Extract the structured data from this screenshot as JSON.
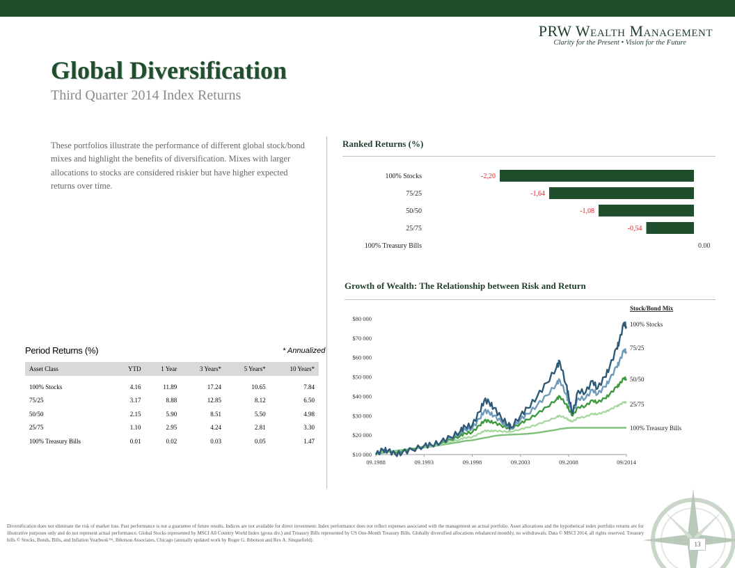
{
  "brand": {
    "name": "PRW Wealth Management",
    "tagline": "Clarity for the Present  •  Vision for the Future"
  },
  "page": {
    "title": "Global Diversification",
    "subtitle": "Third Quarter 2014 Index Returns",
    "intro": "These portfolios illustrate the performance of different global stock/bond mixes and highlight the benefits of diversification. Mixes with larger allocations to stocks are considered riskier but have higher expected returns over time.",
    "page_number": "13"
  },
  "ranked_returns": {
    "title": "Ranked Returns (%)"
  },
  "growth": {
    "title": "Growth of Wealth: The Relationship between Risk and Return"
  },
  "period_returns": {
    "title": "Period Returns (%)",
    "note": "* Annualized",
    "headers": [
      "Asset Class",
      "YTD",
      "1 Year",
      "3 Years*",
      "5 Years*",
      "10 Years*"
    ],
    "rows": [
      [
        "100% Stocks",
        "4.16",
        "11.89",
        "17.24",
        "10.65",
        "7.84"
      ],
      [
        "75/25",
        "3.17",
        "8.88",
        "12.85",
        "8.12",
        "6.50"
      ],
      [
        "50/50",
        "2.15",
        "5.90",
        "8.51",
        "5.50",
        "4.98"
      ],
      [
        "25/75",
        "1.10",
        "2.95",
        "4.24",
        "2.81",
        "3.30"
      ],
      [
        "100% Treasury Bills",
        "0.01",
        "0.02",
        "0.03",
        "0.05",
        "1.47"
      ]
    ]
  },
  "chart_data": [
    {
      "type": "bar",
      "orientation": "horizontal",
      "title": "Ranked Returns (%)",
      "categories": [
        "100% Stocks",
        "75/25",
        "50/50",
        "25/75",
        "100% Treasury Bills"
      ],
      "values": [
        -2.2,
        -1.64,
        -1.08,
        -0.54,
        0.0
      ],
      "value_labels": [
        "-2,20",
        "-1,64",
        "-1,08",
        "-0,54",
        "0.00"
      ],
      "bar_color": "#1f4e2c",
      "negative_label_color": "#e02020",
      "positive_label_color": "#333333",
      "xlim": [
        -2.2,
        0
      ]
    },
    {
      "type": "line",
      "title": "Growth of Wealth: The Relationship between Risk and Return",
      "legend_title": "Stock/Bond Mix",
      "legend_placement": "right",
      "ylim": [
        10000,
        80000
      ],
      "yticks": [
        "$10 000",
        "$20 000",
        "$30 000",
        "$40 000",
        "$50 000",
        "$60 000",
        "$70 000",
        "$80 000"
      ],
      "ytick_values": [
        10000,
        20000,
        30000,
        40000,
        50000,
        60000,
        70000,
        80000
      ],
      "xlim": [
        1988.75,
        2014.75
      ],
      "xticks": [
        "09.1988",
        "09.1993",
        "09.1998",
        "09.2003",
        "09.2008",
        "09/2014"
      ],
      "xtick_values": [
        1988.75,
        1993.75,
        1998.75,
        2003.75,
        2008.75,
        2014.75
      ],
      "x": [
        1988.75,
        1989.5,
        1990.0,
        1990.75,
        1991.5,
        1992.5,
        1993.75,
        1994.5,
        1995.5,
        1996.5,
        1997.5,
        1998.0,
        1998.75,
        1999.5,
        2000.0,
        2000.5,
        2001.0,
        2001.75,
        2002.5,
        2002.75,
        2003.75,
        2004.5,
        2005.5,
        2006.5,
        2007.5,
        2007.83,
        2008.5,
        2008.75,
        2009.17,
        2009.75,
        2010.5,
        2011.25,
        2011.75,
        2012.5,
        2013.0,
        2013.75,
        2014.0,
        2014.5,
        2014.75
      ],
      "series": [
        {
          "name": "100% Stocks",
          "color": "#2e5a78",
          "values": [
            10000,
            12500,
            12000,
            10200,
            11000,
            12500,
            14500,
            15000,
            16500,
            19000,
            22000,
            24500,
            25000,
            32000,
            38000,
            37000,
            34000,
            29000,
            25500,
            24000,
            30000,
            34000,
            40000,
            47000,
            55000,
            58000,
            46000,
            40000,
            31000,
            43000,
            42000,
            48000,
            44000,
            50000,
            55000,
            65000,
            68000,
            78000,
            76000
          ]
        },
        {
          "name": "75/25",
          "color": "#6f9bbb",
          "values": [
            10000,
            12200,
            11800,
            10500,
            11300,
            12600,
            14500,
            14800,
            16200,
            18500,
            21000,
            23000,
            23500,
            28500,
            32500,
            31800,
            30000,
            27000,
            24500,
            23500,
            28000,
            31000,
            35500,
            40500,
            46500,
            48500,
            41000,
            37000,
            31000,
            39000,
            39000,
            43500,
            41000,
            45000,
            48500,
            55500,
            57500,
            64000,
            63000
          ]
        },
        {
          "name": "50/50",
          "color": "#3f9a3f",
          "values": [
            10000,
            12000,
            11800,
            11000,
            11800,
            13000,
            14500,
            14700,
            15800,
            17600,
            19600,
            21000,
            21500,
            25000,
            27500,
            27200,
            26500,
            25000,
            23700,
            23300,
            26000,
            28000,
            31000,
            34500,
            38500,
            40000,
            36000,
            33500,
            30000,
            34500,
            35000,
            38000,
            36800,
            39000,
            41000,
            45000,
            46000,
            49500,
            49000
          ]
        },
        {
          "name": "25/75",
          "color": "#a8d8a0",
          "values": [
            10000,
            11700,
            11700,
            11300,
            12100,
            13000,
            14300,
            14400,
            15300,
            16500,
            17800,
            18700,
            19000,
            20800,
            22200,
            22200,
            22200,
            22000,
            21800,
            21800,
            23000,
            24000,
            25500,
            27300,
            29300,
            30000,
            28800,
            27800,
            27000,
            29000,
            29500,
            31000,
            30800,
            32000,
            33000,
            35000,
            35500,
            37000,
            37000
          ]
        },
        {
          "name": "100% Treasury Bills",
          "color": "#7cc07c",
          "values": [
            10000,
            10900,
            11300,
            11900,
            12400,
            13000,
            13600,
            14100,
            14900,
            15700,
            16500,
            17000,
            17400,
            18100,
            18600,
            19000,
            19600,
            20000,
            20200,
            20300,
            20500,
            20700,
            21200,
            22000,
            22800,
            23200,
            23600,
            23700,
            23800,
            23800,
            23800,
            23800,
            23800,
            23800,
            23800,
            23800,
            23800,
            23800,
            23800
          ]
        }
      ]
    }
  ],
  "disclaimer": "Diversification does not eliminate the risk of market loss. Past performance is not a guarantee of future results. Indices are not available for direct investment. Index performance does not reflect expenses associated with the management an actual portfolio. Asset allocations and the hypothetical index portfolio returns are for illustrative purposes only and do not represent actual performance. Global Stocks represented by MSCI All Country World Index (gross div.) and Treasury Bills represented by US One-Month Treasury Bills. Globally diversified allocations rebalanced monthly, no withdrawals. Data © MSCI 2014, all rights reserved. Treasury bills © Stocks, Bonds, Bills, and Inflation Yearbook™, Ibbotson Associates, Chicago (annually updated work by Roger G. Ibbotson and Rex A. Sinquefield).",
  "colors": {
    "brand_green": "#1f4e2c",
    "neg_red": "#e02020"
  }
}
